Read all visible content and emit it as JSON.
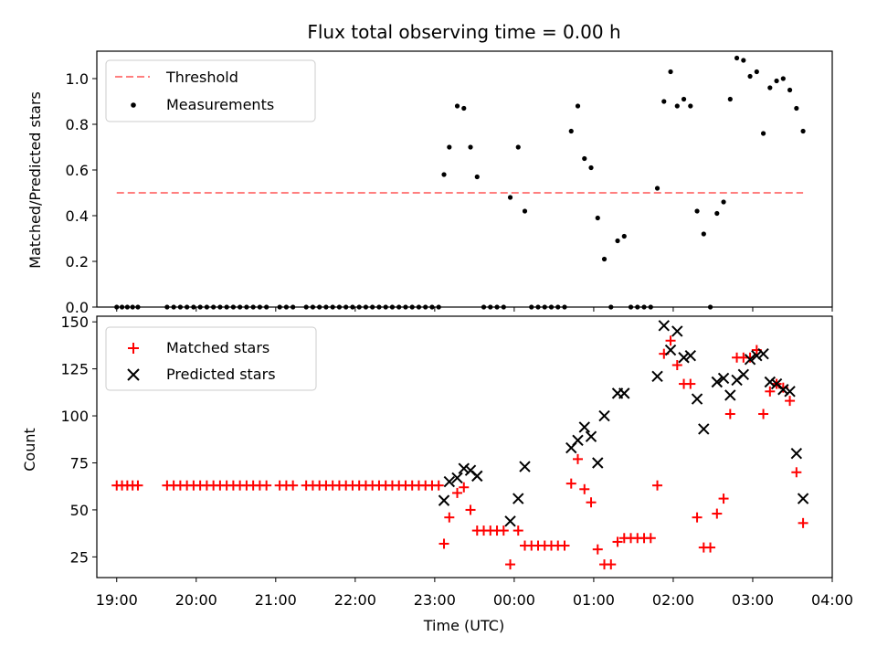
{
  "chart_data": [
    {
      "type": "scatter",
      "title": "Flux total observing time = 0.00 h",
      "ylabel": "Matched/Predicted stars",
      "xlabel": "",
      "xlim": [
        "18:45",
        "04:00"
      ],
      "ylim": [
        0,
        1.12
      ],
      "y_ticks": [
        "0.0",
        "0.2",
        "0.4",
        "0.6",
        "0.8",
        "1.0"
      ],
      "legend_position": "top-left",
      "threshold": {
        "name": "Threshold",
        "value": 0.5,
        "x_start": "19:00",
        "x_end": "03:38",
        "color": "#ff7f7f",
        "style": "dashed"
      },
      "series": [
        {
          "name": "Measurements",
          "color": "#000000",
          "marker": "dot",
          "points": [
            [
              "19:00",
              0
            ],
            [
              "19:04",
              0
            ],
            [
              "19:08",
              0
            ],
            [
              "19:12",
              0
            ],
            [
              "19:16",
              0
            ],
            [
              "19:38",
              0
            ],
            [
              "19:43",
              0
            ],
            [
              "19:48",
              0
            ],
            [
              "19:53",
              0
            ],
            [
              "19:58",
              0
            ],
            [
              "20:03",
              0
            ],
            [
              "20:08",
              0
            ],
            [
              "20:13",
              0
            ],
            [
              "20:18",
              0
            ],
            [
              "20:23",
              0
            ],
            [
              "20:28",
              0
            ],
            [
              "20:33",
              0
            ],
            [
              "20:38",
              0
            ],
            [
              "20:43",
              0
            ],
            [
              "20:48",
              0
            ],
            [
              "20:53",
              0
            ],
            [
              "21:03",
              0
            ],
            [
              "21:08",
              0
            ],
            [
              "21:13",
              0
            ],
            [
              "21:23",
              0
            ],
            [
              "21:28",
              0
            ],
            [
              "21:33",
              0
            ],
            [
              "21:38",
              0
            ],
            [
              "21:43",
              0
            ],
            [
              "21:48",
              0
            ],
            [
              "21:53",
              0
            ],
            [
              "21:58",
              0
            ],
            [
              "22:03",
              0
            ],
            [
              "22:08",
              0
            ],
            [
              "22:13",
              0
            ],
            [
              "22:18",
              0
            ],
            [
              "22:23",
              0
            ],
            [
              "22:28",
              0
            ],
            [
              "22:33",
              0
            ],
            [
              "22:38",
              0
            ],
            [
              "22:43",
              0
            ],
            [
              "22:48",
              0
            ],
            [
              "22:53",
              0
            ],
            [
              "22:58",
              0
            ],
            [
              "23:03",
              0
            ],
            [
              "23:07",
              0.58
            ],
            [
              "23:11",
              0.7
            ],
            [
              "23:17",
              0.88
            ],
            [
              "23:22",
              0.87
            ],
            [
              "23:27",
              0.7
            ],
            [
              "23:32",
              0.57
            ],
            [
              "23:37",
              0
            ],
            [
              "23:42",
              0
            ],
            [
              "23:47",
              0
            ],
            [
              "23:52",
              0
            ],
            [
              "23:57",
              0.48
            ],
            [
              "00:03",
              0.7
            ],
            [
              "00:08",
              0.42
            ],
            [
              "00:13",
              0
            ],
            [
              "00:18",
              0
            ],
            [
              "00:23",
              0
            ],
            [
              "00:28",
              0
            ],
            [
              "00:33",
              0
            ],
            [
              "00:38",
              0
            ],
            [
              "00:43",
              0.77
            ],
            [
              "00:48",
              0.88
            ],
            [
              "00:53",
              0.65
            ],
            [
              "00:58",
              0.61
            ],
            [
              "01:03",
              0.39
            ],
            [
              "01:08",
              0.21
            ],
            [
              "01:13",
              0
            ],
            [
              "01:18",
              0.29
            ],
            [
              "01:23",
              0.31
            ],
            [
              "01:28",
              0
            ],
            [
              "01:33",
              0
            ],
            [
              "01:38",
              0
            ],
            [
              "01:43",
              0
            ],
            [
              "01:48",
              0.52
            ],
            [
              "01:53",
              0.9
            ],
            [
              "01:58",
              1.03
            ],
            [
              "02:03",
              0.88
            ],
            [
              "02:08",
              0.91
            ],
            [
              "02:13",
              0.88
            ],
            [
              "02:18",
              0.42
            ],
            [
              "02:23",
              0.32
            ],
            [
              "02:28",
              0
            ],
            [
              "02:33",
              0.41
            ],
            [
              "02:38",
              0.46
            ],
            [
              "02:43",
              0.91
            ],
            [
              "02:48",
              1.09
            ],
            [
              "02:53",
              1.08
            ],
            [
              "02:58",
              1.01
            ],
            [
              "03:03",
              1.03
            ],
            [
              "03:08",
              0.76
            ],
            [
              "03:13",
              0.96
            ],
            [
              "03:18",
              0.99
            ],
            [
              "03:23",
              1.0
            ],
            [
              "03:28",
              0.95
            ],
            [
              "03:33",
              0.87
            ],
            [
              "03:38",
              0.77
            ]
          ]
        }
      ]
    },
    {
      "type": "scatter",
      "title": "",
      "ylabel": "Count",
      "xlabel": "Time (UTC)",
      "xlim": [
        "18:45",
        "04:00"
      ],
      "ylim": [
        14,
        153
      ],
      "x_ticks": [
        "19:00",
        "20:00",
        "21:00",
        "22:00",
        "23:00",
        "00:00",
        "01:00",
        "02:00",
        "03:00",
        "04:00"
      ],
      "y_ticks": [
        "25",
        "50",
        "75",
        "100",
        "125",
        "150"
      ],
      "legend_position": "top-left",
      "series": [
        {
          "name": "Matched stars",
          "color": "#ff0000",
          "marker": "plus",
          "points": [
            [
              "19:00",
              63
            ],
            [
              "19:04",
              63
            ],
            [
              "19:08",
              63
            ],
            [
              "19:12",
              63
            ],
            [
              "19:16",
              63
            ],
            [
              "19:38",
              63
            ],
            [
              "19:43",
              63
            ],
            [
              "19:48",
              63
            ],
            [
              "19:53",
              63
            ],
            [
              "19:58",
              63
            ],
            [
              "20:03",
              63
            ],
            [
              "20:08",
              63
            ],
            [
              "20:13",
              63
            ],
            [
              "20:18",
              63
            ],
            [
              "20:23",
              63
            ],
            [
              "20:28",
              63
            ],
            [
              "20:33",
              63
            ],
            [
              "20:38",
              63
            ],
            [
              "20:43",
              63
            ],
            [
              "20:48",
              63
            ],
            [
              "20:53",
              63
            ],
            [
              "21:03",
              63
            ],
            [
              "21:08",
              63
            ],
            [
              "21:13",
              63
            ],
            [
              "21:23",
              63
            ],
            [
              "21:28",
              63
            ],
            [
              "21:33",
              63
            ],
            [
              "21:38",
              63
            ],
            [
              "21:43",
              63
            ],
            [
              "21:48",
              63
            ],
            [
              "21:53",
              63
            ],
            [
              "21:58",
              63
            ],
            [
              "22:03",
              63
            ],
            [
              "22:08",
              63
            ],
            [
              "22:13",
              63
            ],
            [
              "22:18",
              63
            ],
            [
              "22:23",
              63
            ],
            [
              "22:28",
              63
            ],
            [
              "22:33",
              63
            ],
            [
              "22:38",
              63
            ],
            [
              "22:43",
              63
            ],
            [
              "22:48",
              63
            ],
            [
              "22:53",
              63
            ],
            [
              "22:58",
              63
            ],
            [
              "23:03",
              63
            ],
            [
              "23:07",
              32
            ],
            [
              "23:11",
              46
            ],
            [
              "23:17",
              59
            ],
            [
              "23:22",
              62
            ],
            [
              "23:27",
              50
            ],
            [
              "23:32",
              39
            ],
            [
              "23:37",
              39
            ],
            [
              "23:42",
              39
            ],
            [
              "23:47",
              39
            ],
            [
              "23:52",
              39
            ],
            [
              "23:57",
              21
            ],
            [
              "00:03",
              39
            ],
            [
              "00:08",
              31
            ],
            [
              "00:13",
              31
            ],
            [
              "00:18",
              31
            ],
            [
              "00:23",
              31
            ],
            [
              "00:28",
              31
            ],
            [
              "00:33",
              31
            ],
            [
              "00:38",
              31
            ],
            [
              "00:43",
              64
            ],
            [
              "00:48",
              77
            ],
            [
              "00:53",
              61
            ],
            [
              "00:58",
              54
            ],
            [
              "01:03",
              29
            ],
            [
              "01:08",
              21
            ],
            [
              "01:13",
              21
            ],
            [
              "01:18",
              33
            ],
            [
              "01:23",
              35
            ],
            [
              "01:28",
              35
            ],
            [
              "01:33",
              35
            ],
            [
              "01:38",
              35
            ],
            [
              "01:43",
              35
            ],
            [
              "01:48",
              63
            ],
            [
              "01:53",
              133
            ],
            [
              "01:58",
              140
            ],
            [
              "02:03",
              127
            ],
            [
              "02:08",
              117
            ],
            [
              "02:13",
              117
            ],
            [
              "02:18",
              46
            ],
            [
              "02:23",
              30
            ],
            [
              "02:28",
              30
            ],
            [
              "02:33",
              48
            ],
            [
              "02:38",
              56
            ],
            [
              "02:43",
              101
            ],
            [
              "02:48",
              131
            ],
            [
              "02:53",
              131
            ],
            [
              "02:58",
              131
            ],
            [
              "03:03",
              135
            ],
            [
              "03:08",
              101
            ],
            [
              "03:13",
              113
            ],
            [
              "03:18",
              117
            ],
            [
              "03:23",
              115
            ],
            [
              "03:28",
              108
            ],
            [
              "03:33",
              70
            ],
            [
              "03:38",
              43
            ]
          ]
        },
        {
          "name": "Predicted stars",
          "color": "#000000",
          "marker": "x",
          "points": [
            [
              "23:07",
              55
            ],
            [
              "23:11",
              65
            ],
            [
              "23:17",
              67
            ],
            [
              "23:22",
              72
            ],
            [
              "23:27",
              71
            ],
            [
              "23:32",
              68
            ],
            [
              "23:57",
              44
            ],
            [
              "00:03",
              56
            ],
            [
              "00:08",
              73
            ],
            [
              "00:43",
              83
            ],
            [
              "00:48",
              87
            ],
            [
              "00:53",
              94
            ],
            [
              "00:58",
              89
            ],
            [
              "01:03",
              75
            ],
            [
              "01:08",
              100
            ],
            [
              "01:18",
              112
            ],
            [
              "01:23",
              112
            ],
            [
              "01:48",
              121
            ],
            [
              "01:53",
              148
            ],
            [
              "01:58",
              135
            ],
            [
              "02:03",
              145
            ],
            [
              "02:08",
              131
            ],
            [
              "02:13",
              132
            ],
            [
              "02:18",
              109
            ],
            [
              "02:23",
              93
            ],
            [
              "02:33",
              118
            ],
            [
              "02:38",
              120
            ],
            [
              "02:43",
              111
            ],
            [
              "02:48",
              119
            ],
            [
              "02:53",
              122
            ],
            [
              "02:58",
              130
            ],
            [
              "03:03",
              132
            ],
            [
              "03:08",
              133
            ],
            [
              "03:13",
              118
            ],
            [
              "03:18",
              117
            ],
            [
              "03:23",
              114
            ],
            [
              "03:28",
              113
            ],
            [
              "03:33",
              80
            ],
            [
              "03:38",
              56
            ]
          ]
        }
      ]
    }
  ]
}
